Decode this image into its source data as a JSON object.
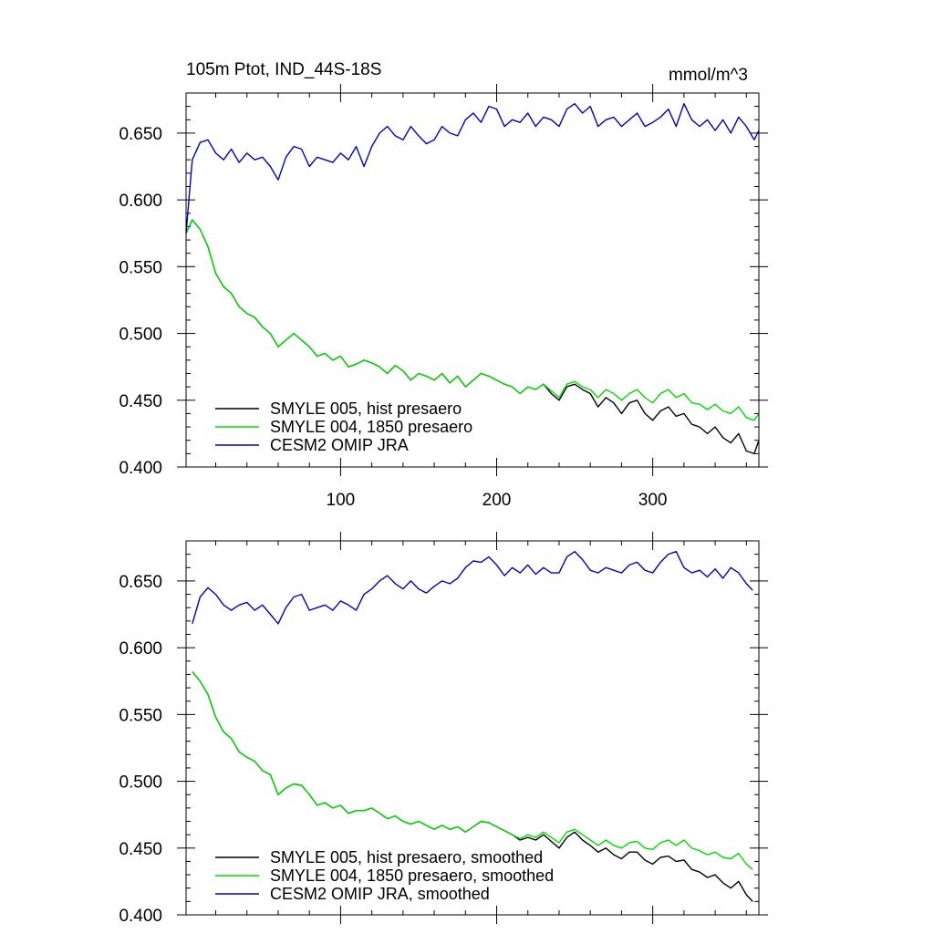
{
  "chart_data": [
    {
      "type": "line",
      "title": "105m Ptot, IND_44S-18S",
      "units": "mmol/m^3",
      "xlim": [
        1,
        368
      ],
      "ylim": [
        0.4,
        0.68
      ],
      "x_ticks": [
        100,
        200,
        300
      ],
      "x_tick_labels": [
        "100",
        "200",
        "300"
      ],
      "y_ticks": [
        0.4,
        0.45,
        0.5,
        0.55,
        0.6,
        0.65
      ],
      "y_tick_labels": [
        "0.400",
        "0.450",
        "0.500",
        "0.550",
        "0.600",
        "0.650"
      ],
      "legend_position": "bottom-left",
      "series": [
        {
          "name": "SMYLE 005, hist presaero",
          "color": "#000000",
          "x": [
            1,
            5,
            10,
            15,
            20,
            25,
            30,
            35,
            40,
            45,
            50,
            55,
            60,
            65,
            70,
            75,
            80,
            85,
            90,
            95,
            100,
            105,
            110,
            115,
            120,
            125,
            130,
            135,
            140,
            145,
            150,
            155,
            160,
            165,
            170,
            175,
            180,
            185,
            190,
            195,
            200,
            205,
            210,
            215,
            220,
            225,
            230,
            235,
            240,
            245,
            250,
            255,
            260,
            265,
            270,
            275,
            280,
            285,
            290,
            295,
            300,
            305,
            310,
            315,
            320,
            325,
            330,
            335,
            340,
            345,
            350,
            355,
            360,
            365,
            368
          ],
          "values": [
            0.575,
            0.585,
            0.578,
            0.565,
            0.545,
            0.535,
            0.53,
            0.52,
            0.515,
            0.512,
            0.505,
            0.5,
            0.49,
            0.495,
            0.5,
            0.495,
            0.49,
            0.483,
            0.485,
            0.48,
            0.483,
            0.475,
            0.477,
            0.48,
            0.478,
            0.475,
            0.47,
            0.476,
            0.472,
            0.465,
            0.47,
            0.468,
            0.465,
            0.47,
            0.463,
            0.468,
            0.46,
            0.465,
            0.47,
            0.468,
            0.465,
            0.462,
            0.46,
            0.455,
            0.46,
            0.458,
            0.462,
            0.455,
            0.45,
            0.46,
            0.462,
            0.458,
            0.455,
            0.445,
            0.452,
            0.448,
            0.44,
            0.448,
            0.45,
            0.44,
            0.435,
            0.442,
            0.445,
            0.438,
            0.44,
            0.432,
            0.43,
            0.425,
            0.43,
            0.422,
            0.418,
            0.425,
            0.412,
            0.41,
            0.42
          ]
        },
        {
          "name": "SMYLE 004, 1850 presaero",
          "color": "#00dd00",
          "x": [
            1,
            5,
            10,
            15,
            20,
            25,
            30,
            35,
            40,
            45,
            50,
            55,
            60,
            65,
            70,
            75,
            80,
            85,
            90,
            95,
            100,
            105,
            110,
            115,
            120,
            125,
            130,
            135,
            140,
            145,
            150,
            155,
            160,
            165,
            170,
            175,
            180,
            185,
            190,
            195,
            200,
            205,
            210,
            215,
            220,
            225,
            230,
            235,
            240,
            245,
            250,
            255,
            260,
            265,
            270,
            275,
            280,
            285,
            290,
            295,
            300,
            305,
            310,
            315,
            320,
            325,
            330,
            335,
            340,
            345,
            350,
            355,
            360,
            365,
            368
          ],
          "values": [
            0.575,
            0.585,
            0.578,
            0.565,
            0.545,
            0.535,
            0.53,
            0.52,
            0.515,
            0.512,
            0.505,
            0.5,
            0.49,
            0.495,
            0.5,
            0.495,
            0.49,
            0.483,
            0.485,
            0.48,
            0.483,
            0.475,
            0.477,
            0.48,
            0.478,
            0.475,
            0.47,
            0.476,
            0.472,
            0.465,
            0.47,
            0.468,
            0.465,
            0.47,
            0.463,
            0.468,
            0.46,
            0.465,
            0.47,
            0.468,
            0.465,
            0.462,
            0.46,
            0.455,
            0.46,
            0.458,
            0.462,
            0.457,
            0.452,
            0.462,
            0.464,
            0.46,
            0.458,
            0.452,
            0.458,
            0.455,
            0.45,
            0.455,
            0.458,
            0.452,
            0.448,
            0.455,
            0.458,
            0.452,
            0.455,
            0.448,
            0.447,
            0.443,
            0.447,
            0.442,
            0.44,
            0.445,
            0.437,
            0.435,
            0.44
          ]
        },
        {
          "name": "CESM2 OMIP JRA",
          "color": "#0000cc",
          "x": [
            1,
            5,
            10,
            15,
            20,
            25,
            30,
            35,
            40,
            45,
            50,
            55,
            60,
            65,
            70,
            75,
            80,
            85,
            90,
            95,
            100,
            105,
            110,
            115,
            120,
            125,
            130,
            135,
            140,
            145,
            150,
            155,
            160,
            165,
            170,
            175,
            180,
            185,
            190,
            195,
            200,
            205,
            210,
            215,
            220,
            225,
            230,
            235,
            240,
            245,
            250,
            255,
            260,
            265,
            270,
            275,
            280,
            285,
            290,
            295,
            300,
            305,
            310,
            315,
            320,
            325,
            330,
            335,
            340,
            345,
            350,
            355,
            360,
            365,
            368
          ],
          "values": [
            0.575,
            0.63,
            0.643,
            0.645,
            0.635,
            0.63,
            0.638,
            0.628,
            0.635,
            0.63,
            0.632,
            0.625,
            0.615,
            0.632,
            0.64,
            0.638,
            0.625,
            0.632,
            0.63,
            0.628,
            0.635,
            0.63,
            0.64,
            0.625,
            0.64,
            0.65,
            0.655,
            0.648,
            0.645,
            0.655,
            0.648,
            0.642,
            0.645,
            0.655,
            0.65,
            0.648,
            0.66,
            0.665,
            0.658,
            0.67,
            0.668,
            0.655,
            0.66,
            0.658,
            0.665,
            0.655,
            0.662,
            0.66,
            0.655,
            0.668,
            0.672,
            0.665,
            0.67,
            0.655,
            0.66,
            0.662,
            0.655,
            0.66,
            0.665,
            0.655,
            0.658,
            0.662,
            0.668,
            0.655,
            0.672,
            0.66,
            0.655,
            0.66,
            0.652,
            0.66,
            0.65,
            0.662,
            0.655,
            0.645,
            0.652
          ]
        }
      ]
    },
    {
      "type": "line",
      "xlim": [
        1,
        368
      ],
      "ylim": [
        0.4,
        0.68
      ],
      "x_ticks": [
        100,
        200,
        300
      ],
      "y_ticks": [
        0.4,
        0.45,
        0.5,
        0.55,
        0.6,
        0.65
      ],
      "y_tick_labels": [
        "0.400",
        "0.450",
        "0.500",
        "0.550",
        "0.600",
        "0.650"
      ],
      "legend_position": "bottom-left",
      "series": [
        {
          "name": "SMYLE 005, hist presaero, smoothed",
          "color": "#000000",
          "x": [
            5,
            10,
            15,
            20,
            25,
            30,
            35,
            40,
            45,
            50,
            55,
            60,
            65,
            70,
            75,
            80,
            85,
            90,
            95,
            100,
            105,
            110,
            115,
            120,
            125,
            130,
            135,
            140,
            145,
            150,
            155,
            160,
            165,
            170,
            175,
            180,
            185,
            190,
            195,
            200,
            205,
            210,
            215,
            220,
            225,
            230,
            235,
            240,
            245,
            250,
            255,
            260,
            265,
            270,
            275,
            280,
            285,
            290,
            295,
            300,
            305,
            310,
            315,
            320,
            325,
            330,
            335,
            340,
            345,
            350,
            355,
            360,
            364
          ],
          "values": [
            0.582,
            0.575,
            0.565,
            0.548,
            0.537,
            0.532,
            0.522,
            0.518,
            0.515,
            0.508,
            0.505,
            0.49,
            0.495,
            0.498,
            0.497,
            0.49,
            0.482,
            0.484,
            0.48,
            0.482,
            0.476,
            0.478,
            0.478,
            0.48,
            0.476,
            0.472,
            0.474,
            0.47,
            0.468,
            0.47,
            0.467,
            0.464,
            0.467,
            0.464,
            0.466,
            0.462,
            0.466,
            0.47,
            0.469,
            0.466,
            0.463,
            0.46,
            0.456,
            0.458,
            0.456,
            0.46,
            0.455,
            0.45,
            0.458,
            0.462,
            0.456,
            0.452,
            0.447,
            0.45,
            0.445,
            0.442,
            0.447,
            0.447,
            0.441,
            0.438,
            0.443,
            0.444,
            0.44,
            0.441,
            0.434,
            0.432,
            0.428,
            0.43,
            0.424,
            0.42,
            0.425,
            0.415,
            0.41
          ]
        },
        {
          "name": "SMYLE 004, 1850 presaero, smoothed",
          "color": "#00dd00",
          "x": [
            5,
            10,
            15,
            20,
            25,
            30,
            35,
            40,
            45,
            50,
            55,
            60,
            65,
            70,
            75,
            80,
            85,
            90,
            95,
            100,
            105,
            110,
            115,
            120,
            125,
            130,
            135,
            140,
            145,
            150,
            155,
            160,
            165,
            170,
            175,
            180,
            185,
            190,
            195,
            200,
            205,
            210,
            215,
            220,
            225,
            230,
            235,
            240,
            245,
            250,
            255,
            260,
            265,
            270,
            275,
            280,
            285,
            290,
            295,
            300,
            305,
            310,
            315,
            320,
            325,
            330,
            335,
            340,
            345,
            350,
            355,
            360,
            364
          ],
          "values": [
            0.582,
            0.575,
            0.565,
            0.548,
            0.537,
            0.532,
            0.522,
            0.518,
            0.515,
            0.508,
            0.505,
            0.49,
            0.495,
            0.498,
            0.497,
            0.49,
            0.482,
            0.484,
            0.48,
            0.482,
            0.476,
            0.478,
            0.478,
            0.48,
            0.476,
            0.472,
            0.474,
            0.47,
            0.468,
            0.47,
            0.467,
            0.464,
            0.467,
            0.464,
            0.466,
            0.462,
            0.466,
            0.47,
            0.469,
            0.466,
            0.463,
            0.46,
            0.457,
            0.46,
            0.458,
            0.462,
            0.458,
            0.454,
            0.462,
            0.464,
            0.46,
            0.456,
            0.452,
            0.456,
            0.452,
            0.45,
            0.454,
            0.455,
            0.45,
            0.449,
            0.454,
            0.456,
            0.452,
            0.456,
            0.45,
            0.448,
            0.445,
            0.447,
            0.443,
            0.442,
            0.446,
            0.438,
            0.434
          ]
        },
        {
          "name": "CESM2 OMIP JRA, smoothed",
          "color": "#0000cc",
          "x": [
            5,
            10,
            15,
            20,
            25,
            30,
            35,
            40,
            45,
            50,
            55,
            60,
            65,
            70,
            75,
            80,
            85,
            90,
            95,
            100,
            105,
            110,
            115,
            120,
            125,
            130,
            135,
            140,
            145,
            150,
            155,
            160,
            165,
            170,
            175,
            180,
            185,
            190,
            195,
            200,
            205,
            210,
            215,
            220,
            225,
            230,
            235,
            240,
            245,
            250,
            255,
            260,
            265,
            270,
            275,
            280,
            285,
            290,
            295,
            300,
            305,
            310,
            315,
            320,
            325,
            330,
            335,
            340,
            345,
            350,
            355,
            360,
            364
          ],
          "values": [
            0.618,
            0.638,
            0.645,
            0.64,
            0.632,
            0.628,
            0.632,
            0.634,
            0.628,
            0.632,
            0.625,
            0.618,
            0.63,
            0.638,
            0.64,
            0.628,
            0.63,
            0.632,
            0.628,
            0.635,
            0.632,
            0.628,
            0.64,
            0.644,
            0.65,
            0.654,
            0.648,
            0.644,
            0.65,
            0.644,
            0.641,
            0.646,
            0.65,
            0.648,
            0.652,
            0.66,
            0.665,
            0.664,
            0.668,
            0.662,
            0.654,
            0.66,
            0.656,
            0.662,
            0.655,
            0.66,
            0.656,
            0.656,
            0.668,
            0.672,
            0.666,
            0.658,
            0.656,
            0.66,
            0.658,
            0.656,
            0.662,
            0.664,
            0.658,
            0.656,
            0.664,
            0.67,
            0.672,
            0.66,
            0.656,
            0.658,
            0.653,
            0.659,
            0.652,
            0.66,
            0.656,
            0.648,
            0.643
          ]
        }
      ]
    }
  ]
}
